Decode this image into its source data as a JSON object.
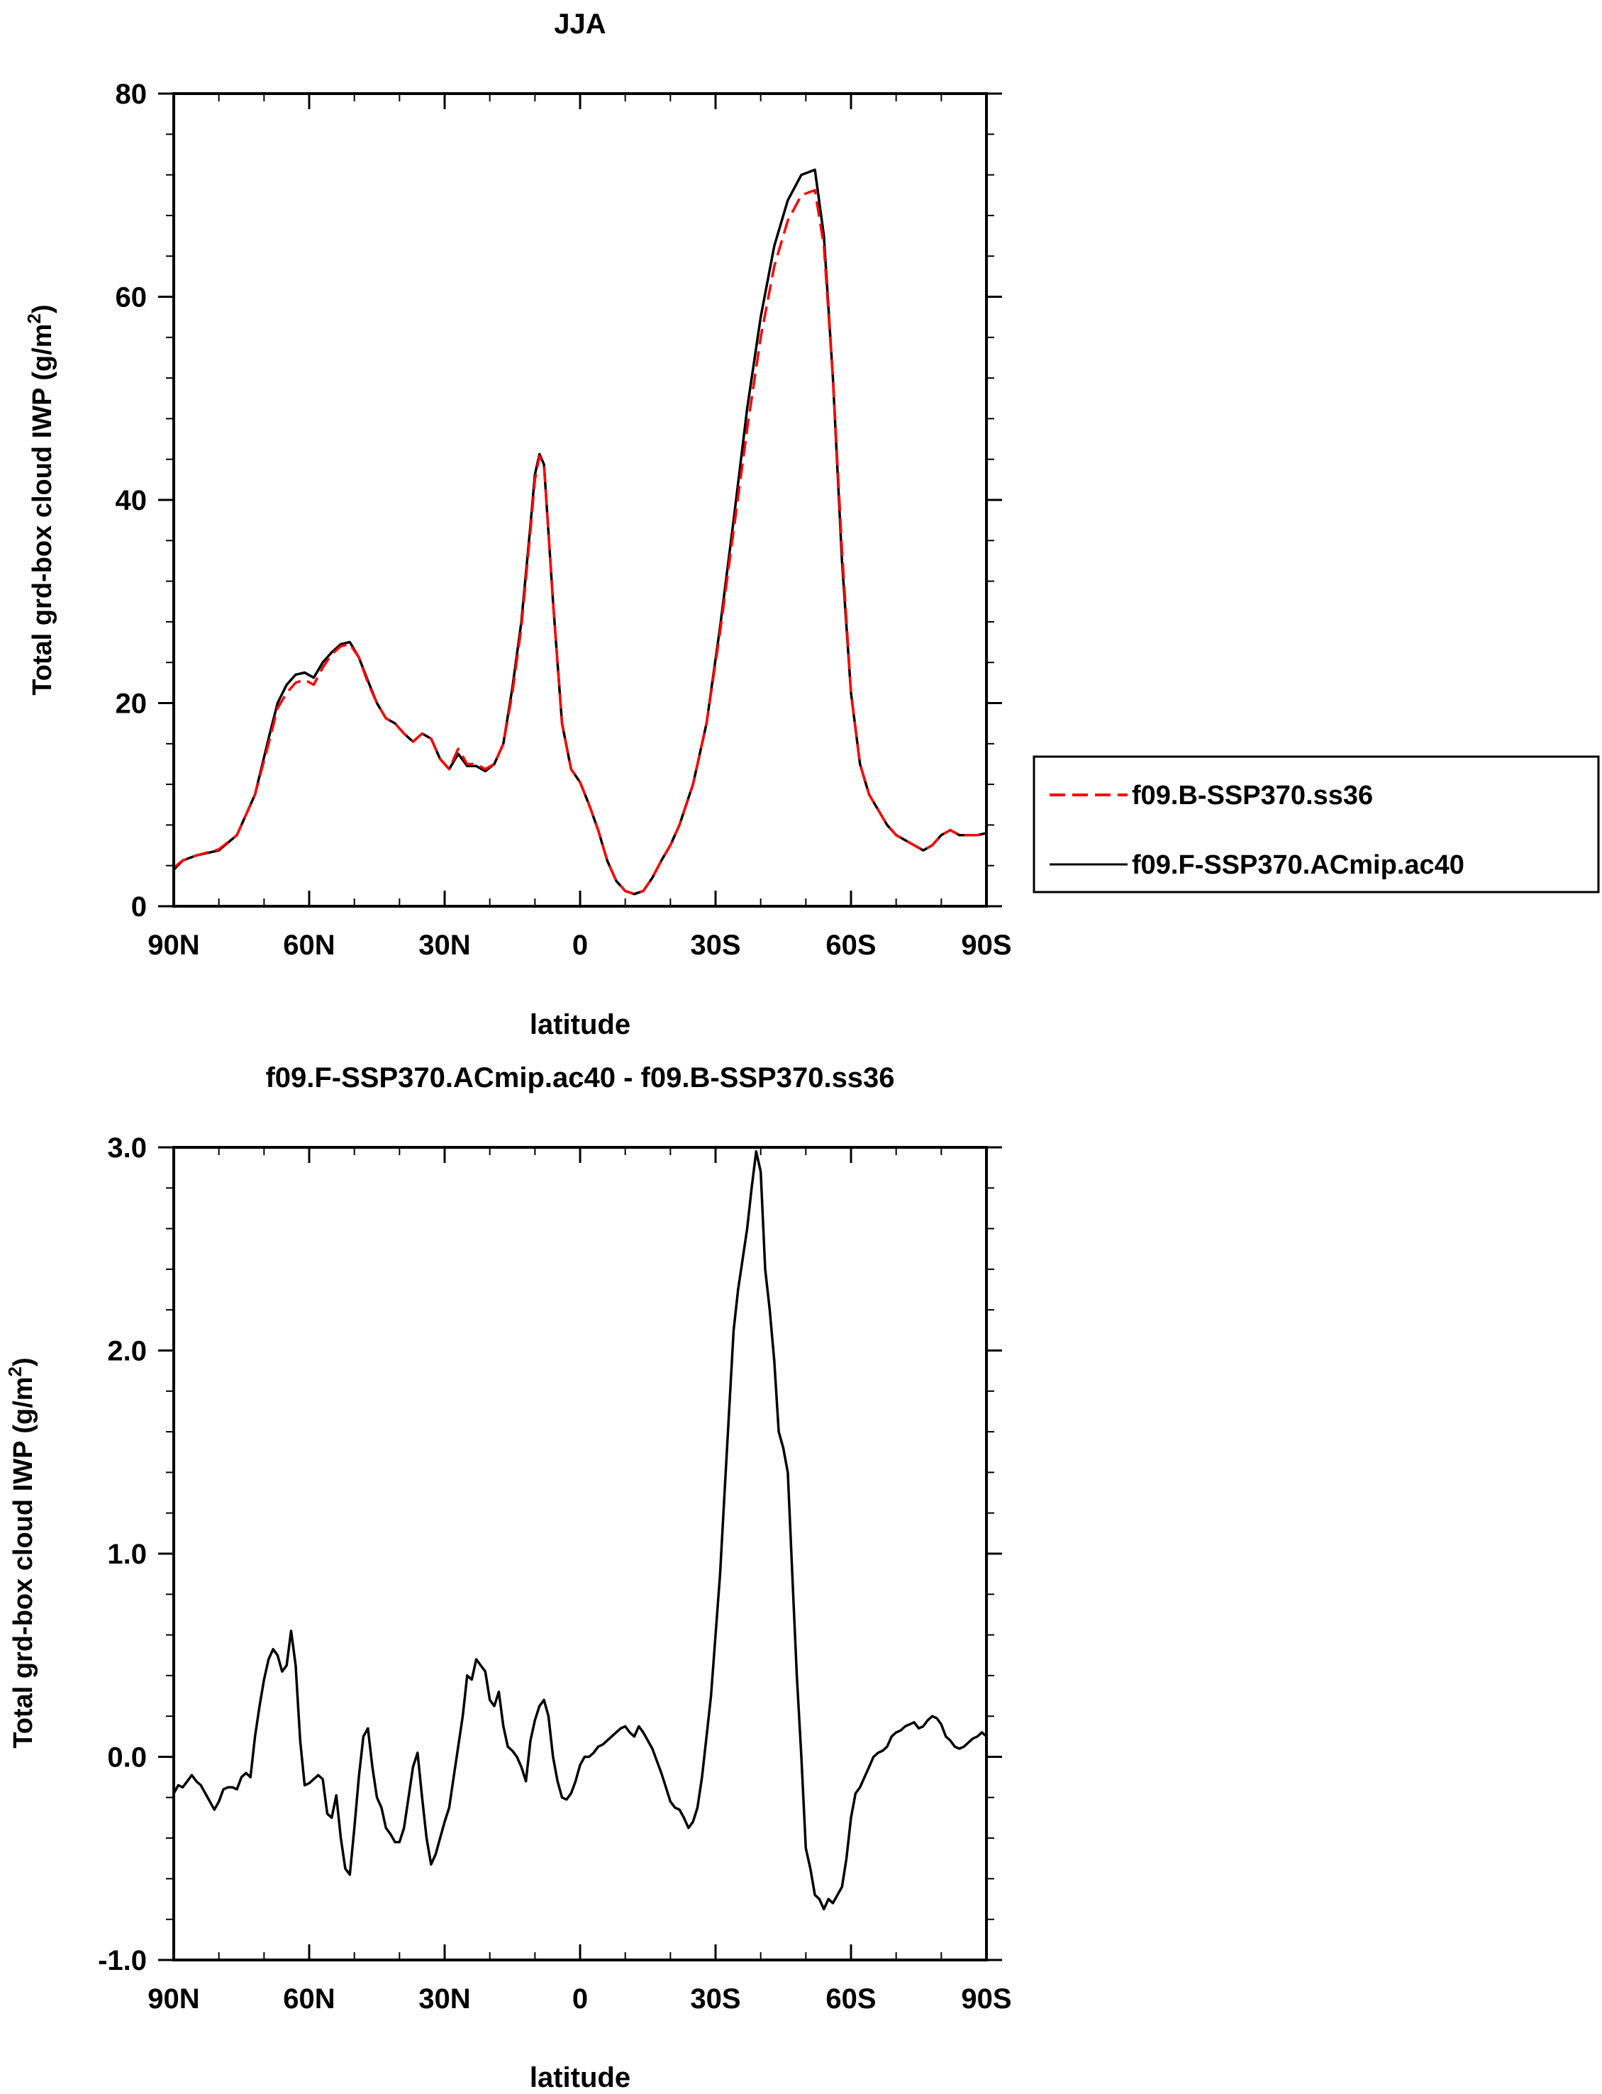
{
  "charts": [
    {
      "title": "JJA",
      "ylabel_main": "Total grd-box cloud IWP (g/m",
      "ylabel_sup": "2",
      "ylabel_end": ")",
      "xlabel": "latitude",
      "xticks": [
        "90N",
        "60N",
        "30N",
        "0",
        "30S",
        "60S",
        "90S"
      ],
      "yticks": [
        "0",
        "20",
        "40",
        "60",
        "80"
      ]
    },
    {
      "title": "f09.F-SSP370.ACmip.ac40 - f09.B-SSP370.ss36",
      "ylabel_main": "Total grd-box cloud IWP (g/m",
      "ylabel_sup": "2",
      "ylabel_end": ")",
      "xlabel": "latitude",
      "xticks": [
        "90N",
        "60N",
        "30N",
        "0",
        "30S",
        "60S",
        "90S"
      ],
      "yticks": [
        "-1.0",
        "0.0",
        "1.0",
        "2.0",
        "3.0"
      ]
    }
  ],
  "legend": {
    "items": [
      {
        "label": "f09.B-SSP370.ss36",
        "color": "#ff0000",
        "dash": "dashed"
      },
      {
        "label": "f09.F-SSP370.ACmip.ac40",
        "color": "#000000",
        "dash": "solid"
      }
    ]
  },
  "chart_data": [
    {
      "type": "line",
      "title": "JJA",
      "xlabel": "latitude",
      "ylabel": "Total grd-box cloud IWP (g/m2)",
      "xlim": [
        90,
        -90
      ],
      "ylim": [
        0,
        80
      ],
      "legend": "right",
      "series": [
        {
          "name": "f09.B-SSP370.ss36",
          "color": "#ff0000",
          "x": [
            90,
            88,
            85,
            80,
            76,
            72,
            69,
            67,
            65,
            63,
            61,
            59,
            57,
            55,
            53,
            51,
            49,
            47,
            45,
            43,
            41,
            39,
            37,
            35,
            33,
            31,
            29,
            27,
            25,
            23,
            21,
            19,
            17,
            15,
            13,
            11,
            10,
            9,
            8,
            6,
            4,
            2,
            0,
            -2,
            -4,
            -6,
            -8,
            -10,
            -12,
            -14,
            -16,
            -18,
            -20,
            -22,
            -25,
            -28,
            -31,
            -34,
            -37,
            -40,
            -43,
            -46,
            -49,
            -52,
            -54,
            -56,
            -58,
            -60,
            -62,
            -64,
            -66,
            -68,
            -70,
            -72,
            -74,
            -76,
            -78,
            -80,
            -82,
            -84,
            -86,
            -88,
            -90
          ],
          "y": [
            3.8,
            4.5,
            5.0,
            5.6,
            7.0,
            11.0,
            16.0,
            19.5,
            21.0,
            22.0,
            22.3,
            21.8,
            23.5,
            24.8,
            25.6,
            25.8,
            24.5,
            22.0,
            20.0,
            18.5,
            18.0,
            17.0,
            16.2,
            17.0,
            16.5,
            14.5,
            13.5,
            15.5,
            14.0,
            14.0,
            13.5,
            14.0,
            16.0,
            21.0,
            27.5,
            37.0,
            42.0,
            44.3,
            43.5,
            30.0,
            18.0,
            13.5,
            12.2,
            10.0,
            7.5,
            4.5,
            2.5,
            1.5,
            1.2,
            1.5,
            2.8,
            4.5,
            6.0,
            8.0,
            12.0,
            18.0,
            27.0,
            37.0,
            47.0,
            56.0,
            63.0,
            67.5,
            70.0,
            70.5,
            65.0,
            52.0,
            35.0,
            21.0,
            14.0,
            11.0,
            9.5,
            8.0,
            7.0,
            6.5,
            6.0,
            5.5,
            6.0,
            7.0,
            7.5,
            7.0,
            7.0,
            7.0,
            7.2
          ]
        },
        {
          "name": "f09.F-SSP370.ACmip.ac40",
          "color": "#000000",
          "x": [
            90,
            88,
            85,
            80,
            76,
            72,
            69,
            67,
            65,
            63,
            61,
            59,
            57,
            55,
            53,
            51,
            49,
            47,
            45,
            43,
            41,
            39,
            37,
            35,
            33,
            31,
            29,
            27,
            25,
            23,
            21,
            19,
            17,
            15,
            13,
            11,
            10,
            9,
            8,
            6,
            4,
            2,
            0,
            -2,
            -4,
            -6,
            -8,
            -10,
            -12,
            -14,
            -16,
            -18,
            -20,
            -22,
            -25,
            -28,
            -31,
            -34,
            -37,
            -40,
            -43,
            -46,
            -49,
            -52,
            -54,
            -56,
            -58,
            -60,
            -62,
            -64,
            -66,
            -68,
            -70,
            -72,
            -74,
            -76,
            -78,
            -80,
            -82,
            -84,
            -86,
            -88,
            -90
          ],
          "y": [
            3.6,
            4.5,
            5.0,
            5.5,
            7.0,
            11.0,
            16.5,
            20.0,
            21.8,
            22.8,
            23.0,
            22.5,
            24.0,
            25.0,
            25.8,
            26.0,
            24.5,
            22.2,
            20.0,
            18.5,
            18.0,
            17.0,
            16.2,
            17.0,
            16.5,
            14.5,
            13.5,
            15.0,
            13.8,
            13.8,
            13.3,
            14.0,
            16.0,
            21.5,
            28.0,
            37.5,
            42.5,
            44.5,
            43.5,
            30.0,
            18.0,
            13.5,
            12.2,
            10.0,
            7.5,
            4.5,
            2.5,
            1.5,
            1.2,
            1.5,
            2.8,
            4.5,
            6.0,
            8.0,
            12.0,
            18.0,
            27.5,
            38.0,
            49.0,
            58.0,
            65.0,
            69.5,
            72.0,
            72.5,
            66.0,
            52.0,
            34.0,
            21.0,
            14.0,
            11.0,
            9.5,
            8.0,
            7.0,
            6.5,
            6.0,
            5.5,
            6.0,
            7.0,
            7.5,
            7.0,
            7.0,
            7.0,
            7.2
          ]
        }
      ]
    },
    {
      "type": "line",
      "title": "f09.F-SSP370.ACmip.ac40 - f09.B-SSP370.ss36",
      "xlabel": "latitude",
      "ylabel": "Total grd-box cloud IWP (g/m2)",
      "xlim": [
        90,
        -90
      ],
      "ylim": [
        -1.0,
        3.0
      ],
      "series": [
        {
          "color": "#000000",
          "x": [
            90,
            89,
            88,
            87,
            86,
            85,
            84,
            83,
            82,
            81,
            80,
            79,
            78,
            77,
            76,
            75,
            74,
            73,
            72,
            71,
            70,
            69,
            68,
            67,
            66,
            65,
            64,
            63,
            62,
            61,
            60,
            59,
            58,
            57,
            56,
            55,
            54,
            53,
            52,
            51,
            50,
            49,
            48,
            47,
            46,
            45,
            44,
            43,
            42,
            41,
            40,
            39,
            38,
            37,
            36,
            35,
            34,
            33,
            32,
            31,
            30,
            29,
            28,
            27,
            26,
            25,
            24,
            23,
            22,
            21,
            20,
            19,
            18,
            17,
            16,
            15,
            14,
            13,
            12,
            11,
            10,
            9,
            8,
            7,
            6,
            5,
            4,
            3,
            2,
            1,
            0,
            -1,
            -2,
            -3,
            -4,
            -5,
            -6,
            -7,
            -8,
            -9,
            -10,
            -11,
            -12,
            -13,
            -14,
            -15,
            -16,
            -17,
            -18,
            -19,
            -20,
            -21,
            -22,
            -23,
            -24,
            -25,
            -26,
            -27,
            -28,
            -29,
            -30,
            -31,
            -32,
            -33,
            -34,
            -35,
            -36,
            -37,
            -38,
            -39,
            -40,
            -41,
            -42,
            -43,
            -44,
            -45,
            -46,
            -47,
            -48,
            -49,
            -50,
            -51,
            -52,
            -53,
            -54,
            -55,
            -56,
            -57,
            -58,
            -59,
            -60,
            -61,
            -62,
            -63,
            -64,
            -65,
            -66,
            -67,
            -68,
            -69,
            -70,
            -71,
            -72,
            -73,
            -74,
            -75,
            -76,
            -77,
            -78,
            -79,
            -80,
            -81,
            -82,
            -83,
            -84,
            -85,
            -86,
            -87,
            -88,
            -89,
            -90
          ],
          "y": [
            -0.18,
            -0.14,
            -0.15,
            -0.12,
            -0.09,
            -0.12,
            -0.14,
            -0.18,
            -0.22,
            -0.26,
            -0.22,
            -0.16,
            -0.15,
            -0.15,
            -0.16,
            -0.1,
            -0.08,
            -0.1,
            0.1,
            0.25,
            0.38,
            0.48,
            0.53,
            0.5,
            0.42,
            0.45,
            0.62,
            0.45,
            0.08,
            -0.14,
            -0.13,
            -0.11,
            -0.09,
            -0.11,
            -0.28,
            -0.3,
            -0.19,
            -0.4,
            -0.55,
            -0.58,
            -0.35,
            -0.1,
            0.1,
            0.14,
            -0.05,
            -0.2,
            -0.25,
            -0.35,
            -0.38,
            -0.42,
            -0.42,
            -0.35,
            -0.2,
            -0.05,
            0.02,
            -0.2,
            -0.4,
            -0.53,
            -0.48,
            -0.4,
            -0.32,
            -0.25,
            -0.1,
            0.05,
            0.2,
            0.4,
            0.38,
            0.48,
            0.45,
            0.42,
            0.28,
            0.25,
            0.32,
            0.15,
            0.05,
            0.03,
            0.0,
            -0.05,
            -0.12,
            0.08,
            0.18,
            0.25,
            0.28,
            0.2,
            0.0,
            -0.12,
            -0.2,
            -0.21,
            -0.18,
            -0.12,
            -0.04,
            0.0,
            0.0,
            0.02,
            0.05,
            0.06,
            0.08,
            0.1,
            0.12,
            0.14,
            0.15,
            0.12,
            0.1,
            0.15,
            0.12,
            0.08,
            0.04,
            -0.02,
            -0.08,
            -0.15,
            -0.22,
            -0.25,
            -0.26,
            -0.3,
            -0.35,
            -0.32,
            -0.25,
            -0.1,
            0.1,
            0.3,
            0.6,
            0.9,
            1.3,
            1.7,
            2.1,
            2.3,
            2.45,
            2.6,
            2.8,
            2.98,
            2.88,
            2.4,
            2.2,
            1.95,
            1.6,
            1.52,
            1.4,
            0.9,
            0.4,
            0.0,
            -0.45,
            -0.55,
            -0.68,
            -0.7,
            -0.75,
            -0.7,
            -0.72,
            -0.68,
            -0.64,
            -0.5,
            -0.3,
            -0.18,
            -0.15,
            -0.1,
            -0.05,
            0.0,
            0.02,
            0.03,
            0.05,
            0.1,
            0.12,
            0.13,
            0.15,
            0.16,
            0.17,
            0.14,
            0.15,
            0.18,
            0.2,
            0.19,
            0.16,
            0.1,
            0.08,
            0.05,
            0.04,
            0.05,
            0.07,
            0.09,
            0.1,
            0.12,
            0.1
          ]
        }
      ]
    }
  ]
}
